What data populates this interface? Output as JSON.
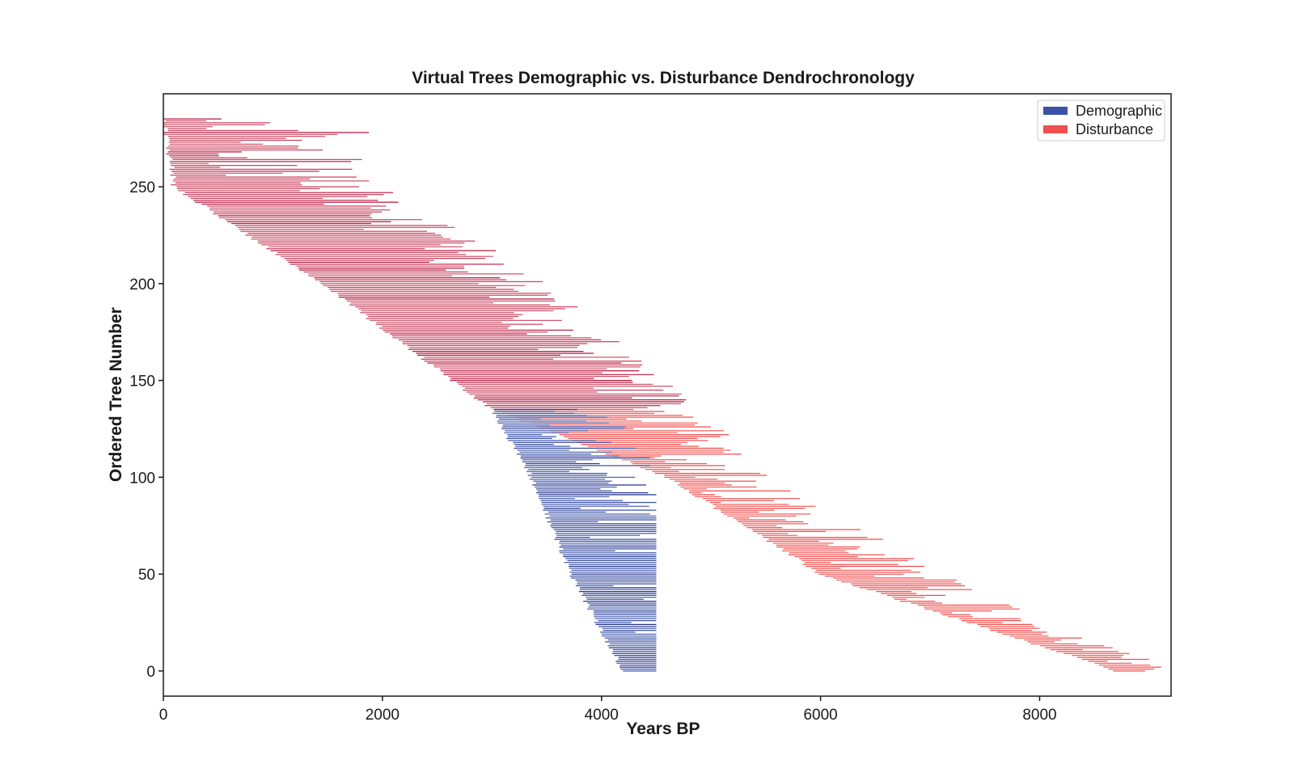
{
  "chart_data": {
    "type": "line",
    "title": "Virtual Trees Demographic vs. Disturbance Dendrochronology",
    "xlabel": "Years BP",
    "ylabel": "Ordered Tree Number",
    "xlim": [
      0,
      9200
    ],
    "ylim": [
      -13,
      298
    ],
    "xticks": [
      "0",
      "2000",
      "4000",
      "6000",
      "8000"
    ],
    "yticks": [
      "0",
      "50",
      "100",
      "150",
      "200",
      "250"
    ],
    "grid": false,
    "legend_position": "top-right",
    "legend": [
      {
        "label": "Demographic",
        "color": "#3b52a6"
      },
      {
        "label": "Disturbance",
        "color": "#ef4f4f"
      }
    ],
    "series": [
      {
        "name": "Demographic",
        "color": "#3b52a6",
        "description_points": {
          "tree_range": [
            0,
            135
          ],
          "start_years": [
            [
              0,
              4200
            ],
            [
              50,
              3720
            ],
            [
              100,
              3360
            ],
            [
              135,
              3000
            ]
          ],
          "end_years_cap": 4500
        }
      },
      {
        "name": "Disturbance",
        "color": "#ef4f4f",
        "description_points": {
          "tree_range": [
            0,
            285
          ],
          "start_years": [
            [
              0,
              8700
            ],
            [
              50,
              6000
            ],
            [
              100,
              4600
            ],
            [
              135,
              3000
            ],
            [
              200,
              1450
            ],
            [
              250,
              100
            ],
            [
              285,
              0
            ]
          ],
          "end_years": [
            [
              0,
              8750
            ],
            [
              50,
              6700
            ],
            [
              100,
              5100
            ],
            [
              135,
              4500
            ],
            [
              200,
              3100
            ],
            [
              250,
              1600
            ],
            [
              285,
              2000
            ]
          ]
        }
      }
    ]
  }
}
